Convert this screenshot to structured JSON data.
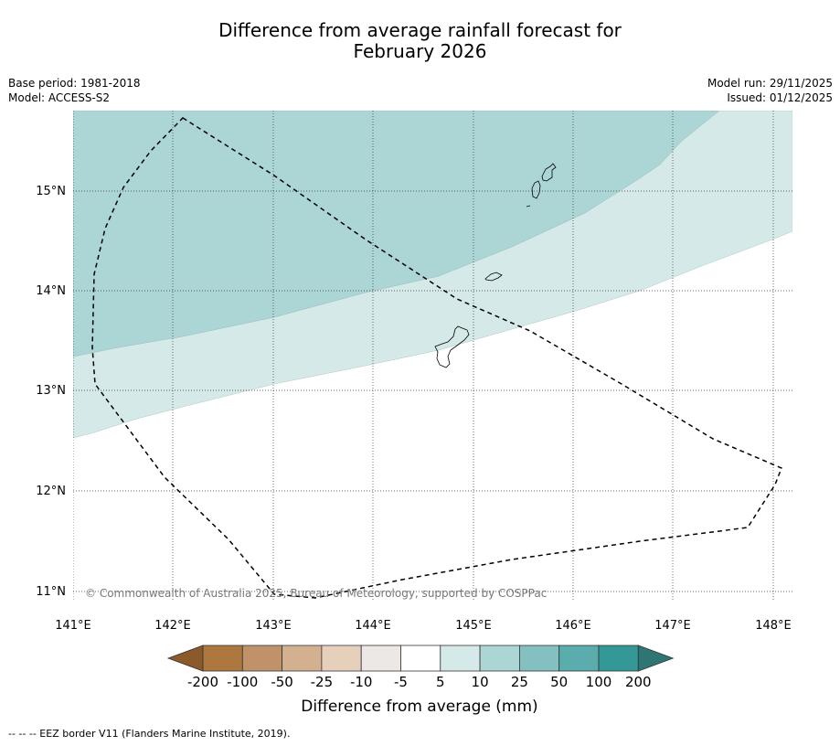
{
  "title": {
    "line1": "Difference from average rainfall forecast for",
    "line2": "February 2026"
  },
  "meta_left": {
    "base_period": "Base period: 1981-2018",
    "model": "Model: ACCESS-S2"
  },
  "meta_right": {
    "model_run": "Model run: 29/11/2025",
    "issued": "Issued: 01/12/2025"
  },
  "map": {
    "lat_labels": [
      "15°N",
      "14°N",
      "13°N",
      "12°N",
      "11°N"
    ],
    "lon_labels": [
      "141°E",
      "142°E",
      "143°E",
      "144°E",
      "145°E",
      "146°E",
      "147°E",
      "148°E"
    ],
    "copyright": "© Commonwealth of Australia 2025, Bureau of Meteorology, supported by COSPPac"
  },
  "legend": {
    "tick_labels": [
      "-200",
      "-100",
      "-50",
      "-25",
      "-10",
      "-5",
      "5",
      "10",
      "25",
      "50",
      "100",
      "200"
    ],
    "colors": [
      "#8b5a2b",
      "#ae773f",
      "#c0926a",
      "#d3b08f",
      "#e6d0bc",
      "#ebe8e5",
      "#ffffff",
      "#d4e9e8",
      "#acd5d5",
      "#84c0c0",
      "#5bacac",
      "#349897",
      "#2d7674"
    ],
    "label": "Difference from average (mm)"
  },
  "footnote": "-- -- -- EEZ border V11 (Flanders Marine Institute, 2019)."
}
